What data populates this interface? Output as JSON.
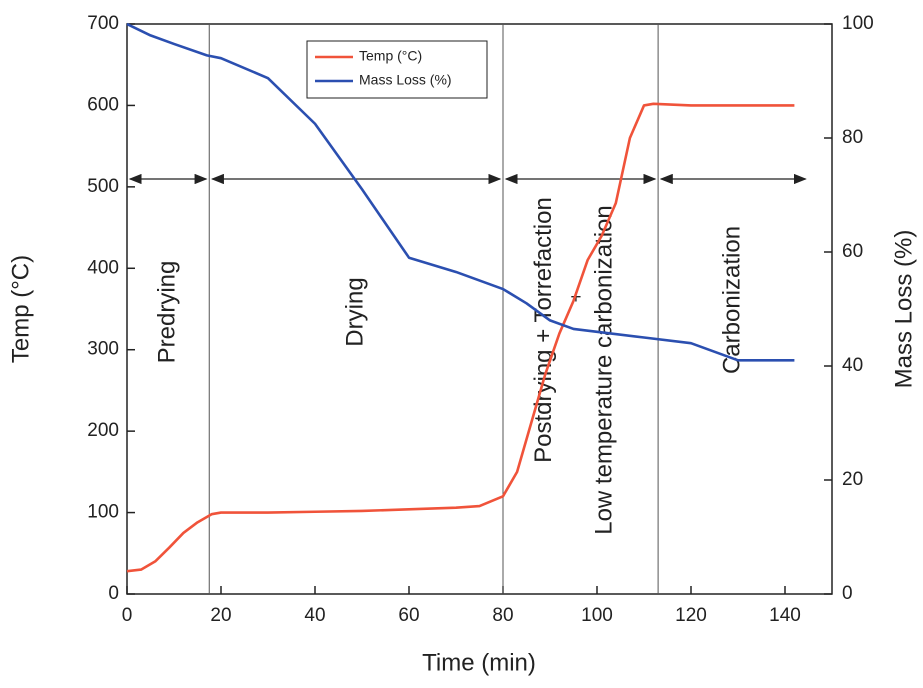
{
  "chart_data": {
    "type": "line",
    "x_label": "Time (min)",
    "y_label": "Temp (°C)",
    "y2_label": "Mass Loss (%)",
    "xlim": [
      0,
      150
    ],
    "xticks": [
      0,
      20,
      40,
      60,
      80,
      100,
      120,
      140
    ],
    "ylim": [
      0,
      700
    ],
    "yticks": [
      0,
      100,
      200,
      300,
      400,
      500,
      600,
      700
    ],
    "y2lim": [
      0,
      100
    ],
    "y2ticks": [
      0,
      20,
      40,
      60,
      80,
      100
    ],
    "legend": "top-center",
    "series": [
      {
        "name": "Temp (°C)",
        "color": "#f0533a",
        "x": [
          0,
          3,
          6,
          9,
          12,
          15,
          18,
          20,
          30,
          40,
          50,
          60,
          70,
          75,
          80,
          83,
          86,
          89,
          92,
          95,
          98,
          101,
          104,
          107,
          110,
          112,
          120,
          142
        ],
        "values": [
          28,
          30,
          40,
          57,
          75,
          88,
          98,
          100,
          100,
          101,
          102,
          104,
          106,
          108,
          120,
          150,
          210,
          270,
          320,
          360,
          410,
          440,
          480,
          560,
          600,
          602,
          600,
          600
        ]
      },
      {
        "name": "Mass Loss (%)",
        "color": "#2b4fb0",
        "axis": "y2",
        "x": [
          0,
          5,
          10,
          17,
          20,
          30,
          40,
          50,
          60,
          70,
          80,
          85,
          90,
          95,
          100,
          110,
          120,
          130,
          142
        ],
        "values": [
          100,
          98,
          96.5,
          94.5,
          94,
          90.5,
          82.5,
          71,
          59,
          56.5,
          53.5,
          51,
          48,
          46.5,
          46,
          45,
          44,
          41,
          41
        ]
      }
    ],
    "phases": [
      {
        "labels": [
          "Predrying"
        ],
        "start": 0,
        "end": 17.5
      },
      {
        "labels": [
          "Drying"
        ],
        "start": 17.5,
        "end": 80
      },
      {
        "labels": [
          "Postdrying + Torrefaction",
          "+",
          "Low temperature carbonization"
        ],
        "start": 80,
        "end": 113
      },
      {
        "labels": [
          "Carbonization"
        ],
        "start": 113,
        "end": 145
      }
    ]
  }
}
